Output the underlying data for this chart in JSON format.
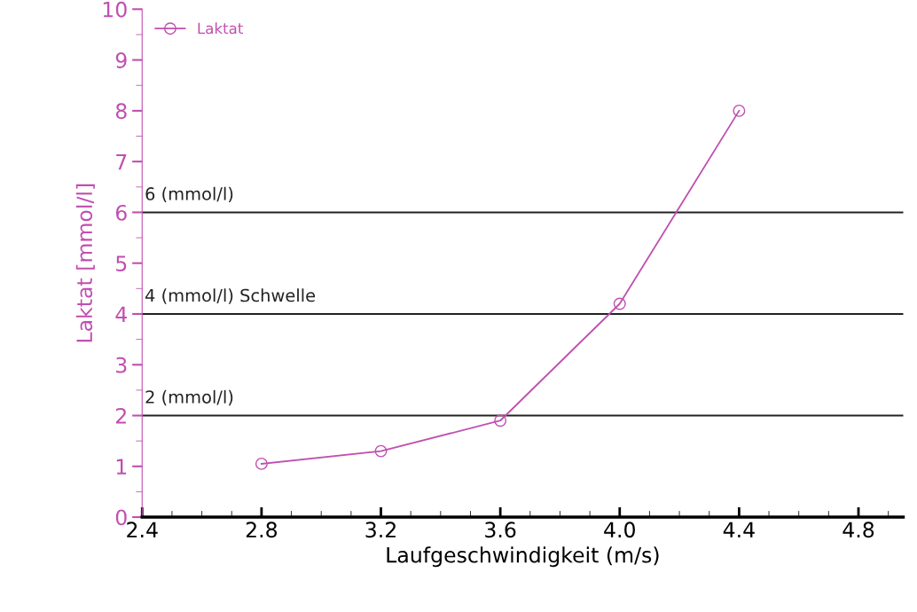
{
  "chart_data": {
    "type": "line",
    "xlabel": "Laufgeschwindigkeit (m/s)",
    "ylabel": "Laktat [mmol/l]",
    "x": [
      2.8,
      3.2,
      3.6,
      4.0,
      4.4
    ],
    "series": [
      {
        "name": "Laktat",
        "color": "#c04fb0",
        "values": [
          1.05,
          1.3,
          1.9,
          4.2,
          8.0
        ]
      }
    ],
    "xlim": [
      2.4,
      4.95
    ],
    "ylim": [
      0,
      10
    ],
    "xticks": [
      {
        "value": 2.4,
        "label": "2.4"
      },
      {
        "value": 2.8,
        "label": "2.8"
      },
      {
        "value": 3.2,
        "label": "3.2"
      },
      {
        "value": 3.6,
        "label": "3.6"
      },
      {
        "value": 4.0,
        "label": "4.0"
      },
      {
        "value": 4.4,
        "label": "4.4"
      },
      {
        "value": 4.8,
        "label": "4.8"
      }
    ],
    "yticks": [
      0,
      1,
      2,
      3,
      4,
      5,
      6,
      7,
      8,
      9,
      10
    ],
    "ref_lines": [
      {
        "axis": "y",
        "value": 6,
        "label": "6 (mmol/l)",
        "color": "#222222"
      },
      {
        "axis": "y",
        "value": 4,
        "label": "4 (mmol/l) Schwelle",
        "color": "#222222"
      },
      {
        "axis": "y",
        "value": 2,
        "label": "2 (mmol/l)",
        "color": "#222222"
      }
    ],
    "marker": "circle",
    "line_style": "solid",
    "legend": "top left",
    "grid": false
  }
}
